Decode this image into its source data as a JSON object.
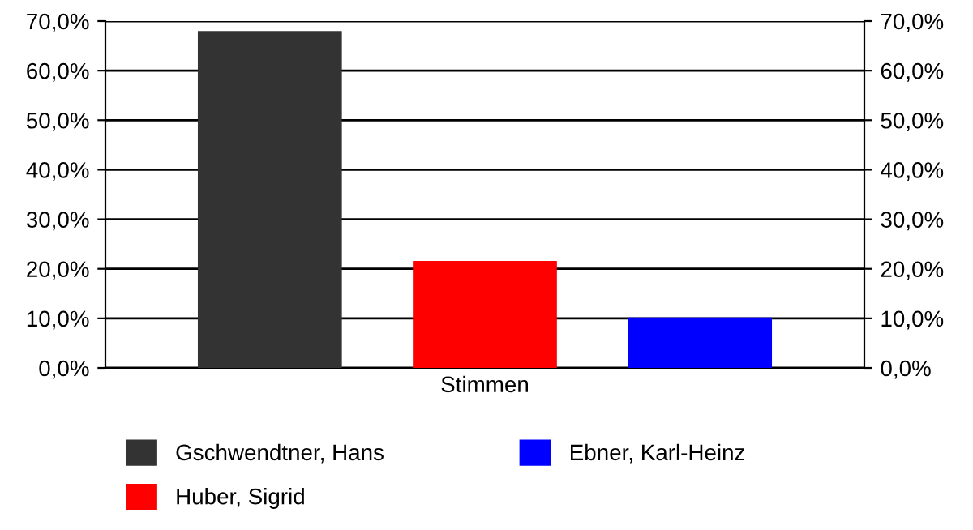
{
  "chart_data": {
    "type": "bar",
    "categories": [
      "Stimmen"
    ],
    "series": [
      {
        "name": "Gschwendtner, Hans",
        "color": "#333333",
        "values": [
          68.0
        ]
      },
      {
        "name": "Huber, Sigrid",
        "color": "#ff0000",
        "values": [
          21.6
        ]
      },
      {
        "name": "Ebner, Karl-Heinz",
        "color": "#0000ff",
        "values": [
          10.2
        ]
      }
    ],
    "ylim": [
      0,
      70
    ],
    "yticks": [
      {
        "value": 0,
        "label": "0,0%"
      },
      {
        "value": 10,
        "label": "10,0%"
      },
      {
        "value": 20,
        "label": "20,0%"
      },
      {
        "value": 30,
        "label": "30,0%"
      },
      {
        "value": 40,
        "label": "40,0%"
      },
      {
        "value": 50,
        "label": "50,0%"
      },
      {
        "value": 60,
        "label": "60,0%"
      },
      {
        "value": 70,
        "label": "70,0%"
      }
    ],
    "grid": "y",
    "legend": "bottom"
  }
}
